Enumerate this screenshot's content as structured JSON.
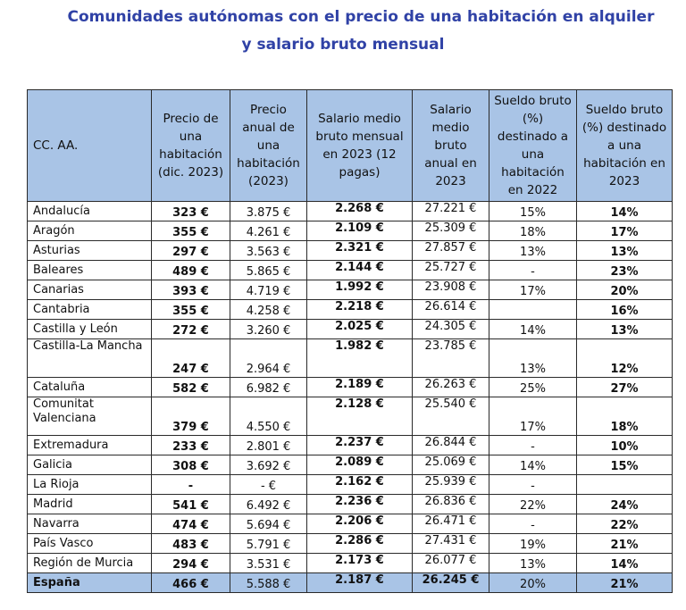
{
  "title": {
    "line1": "Comunidades autónomas con el precio de una habitación en alquiler",
    "line2": "y salario bruto mensual"
  },
  "columns": [
    "CC. AA.",
    "Precio de una habitación (dic. 2023)",
    "Precio anual de una habitación (2023)",
    "Salario medio bruto mensual en 2023 (12 pagas)",
    "Salario medio bruto anual en 2023",
    "Sueldo bruto (%) destinado a una habitación en 2022",
    "Sueldo bruto (%) destinado a una habitación en 2023"
  ],
  "rows": [
    [
      "Andalucía",
      "323 €",
      "3.875 €",
      "2.268 €",
      "27.221 €",
      "15%",
      "14%"
    ],
    [
      "Aragón",
      "355 €",
      "4.261 €",
      "2.109 €",
      "25.309 €",
      "18%",
      "17%"
    ],
    [
      "Asturias",
      "297 €",
      "3.563 €",
      "2.321 €",
      "27.857 €",
      "13%",
      "13%"
    ],
    [
      "Baleares",
      "489 €",
      "5.865 €",
      "2.144 €",
      "25.727 €",
      "-",
      "23%"
    ],
    [
      "Canarias",
      "393 €",
      "4.719 €",
      "1.992 €",
      "23.908 €",
      "17%",
      "20%"
    ],
    [
      "Cantabria",
      "355 €",
      "4.258 €",
      "2.218 €",
      "26.614 €",
      "",
      "16%"
    ],
    [
      "Castilla y León",
      "272 €",
      "3.260 €",
      "2.025 €",
      "24.305 €",
      "14%",
      "13%"
    ],
    [
      "Castilla-La Mancha",
      "247 €",
      "2.964 €",
      "1.982 €",
      "23.785 €",
      "13%",
      "12%"
    ],
    [
      "Cataluña",
      "582 €",
      "6.982 €",
      "2.189 €",
      "26.263 €",
      "25%",
      "27%"
    ],
    [
      "Comunitat Valenciana",
      "379 €",
      "4.550 €",
      "2.128 €",
      "25.540 €",
      "17%",
      "18%"
    ],
    [
      "Extremadura",
      "233 €",
      "2.801 €",
      "2.237 €",
      "26.844 €",
      "-",
      "10%"
    ],
    [
      "Galicia",
      "308 €",
      "3.692 €",
      "2.089 €",
      "25.069 €",
      "14%",
      "15%"
    ],
    [
      "La Rioja",
      "-",
      "-  €",
      "2.162 €",
      "25.939 €",
      "-",
      ""
    ],
    [
      "Madrid",
      "541 €",
      "6.492 €",
      "2.236 €",
      "26.836 €",
      "22%",
      "24%"
    ],
    [
      "Navarra",
      "474 €",
      "5.694 €",
      "2.206 €",
      "26.471 €",
      "-",
      "22%"
    ],
    [
      "País Vasco",
      "483 €",
      "5.791 €",
      "2.286 €",
      "27.431 €",
      "19%",
      "21%"
    ],
    [
      "Región de Murcia",
      "294 €",
      "3.531 €",
      "2.173 €",
      "26.077 €",
      "13%",
      "14%"
    ]
  ],
  "total": [
    "España",
    "466 €",
    "5.588 €",
    "2.187 €",
    "26.245 €",
    "20%",
    "21%"
  ],
  "colors": {
    "title": "#3042a6",
    "header_bg": "#a9c4e6",
    "border": "#2a2a2a"
  }
}
